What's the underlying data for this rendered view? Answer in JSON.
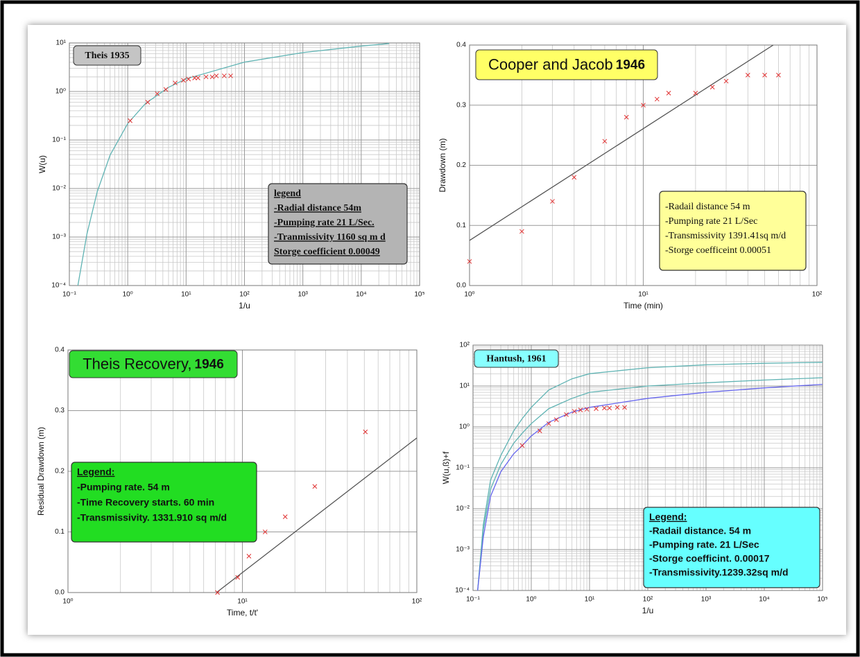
{
  "chart_data": [
    {
      "type": "line",
      "title": "Theis 1935",
      "title_color": "#c4c4c4",
      "xlabel": "1/u",
      "ylabel": "W(u)",
      "xlog": true,
      "ylog": true,
      "grid": true,
      "minor_grid": true,
      "xlim": [
        0.1,
        100000
      ],
      "ylim": [
        0.0001,
        10
      ],
      "xticks": [
        {
          "value": 0.1,
          "label": "10⁻¹"
        },
        {
          "value": 1,
          "label": "10⁰"
        },
        {
          "value": 10,
          "label": "10¹"
        },
        {
          "value": 100,
          "label": "10²"
        },
        {
          "value": 1000,
          "label": "10³"
        },
        {
          "value": 10000,
          "label": "10⁴"
        },
        {
          "value": 100000,
          "label": "10⁵"
        }
      ],
      "yticks": [
        {
          "value": 0.0001,
          "label": "10⁻⁴"
        },
        {
          "value": 0.001,
          "label": "10⁻³"
        },
        {
          "value": 0.01,
          "label": "10⁻²"
        },
        {
          "value": 0.1,
          "label": "10⁻¹"
        },
        {
          "value": 1,
          "label": "10⁰"
        },
        {
          "value": 10,
          "label": "10¹"
        }
      ],
      "series": [
        {
          "color": "#5fb3b3",
          "marker": "line",
          "x": [
            0.14,
            0.2,
            0.3,
            0.5,
            1,
            2,
            5,
            10,
            100,
            1000,
            10000,
            30000
          ],
          "values": [
            0.0001,
            0.00115,
            0.0086,
            0.049,
            0.219,
            0.56,
            1.22,
            1.82,
            4.04,
            6.33,
            8.63,
            9.73
          ]
        },
        {
          "color": "#e03030",
          "marker": "x",
          "x": [
            1.1,
            2.2,
            3.2,
            4.5,
            6.5,
            9,
            11,
            14,
            16,
            22,
            28,
            33,
            45,
            58
          ],
          "values": [
            0.25,
            0.6,
            0.9,
            1.1,
            1.5,
            1.7,
            1.8,
            1.9,
            1.9,
            2.0,
            2.0,
            2.1,
            2.1,
            2.1
          ]
        }
      ],
      "legend": {
        "title": "legend",
        "color": "#b4b4b4",
        "items": [
          "-Radial distance 54m",
          "-Pumping rate 21 L/Sec.",
          "-Tranmissivity 1160 sq m d",
          "Storge coefficient 0.00049"
        ]
      }
    },
    {
      "type": "line",
      "title": "Cooper and Jacob",
      "title_year": "1946",
      "title_color": "#ffff66",
      "xlabel": "Time (min)",
      "ylabel": "Drawdown (m)",
      "xlog": true,
      "ylog": false,
      "grid": true,
      "minor_grid": true,
      "xlim": [
        1,
        100
      ],
      "ylim": [
        0,
        0.4
      ],
      "xticks": [
        {
          "value": 1,
          "label": "10⁰"
        },
        {
          "value": 10,
          "label": "10¹"
        },
        {
          "value": 100,
          "label": "10²"
        }
      ],
      "yticks": [
        {
          "value": 0,
          "label": "0.0"
        },
        0.1,
        0.2,
        0.3,
        0.4
      ],
      "series": [
        {
          "color": "#555555",
          "marker": "line",
          "x": [
            1,
            56
          ],
          "values": [
            0.075,
            0.4
          ]
        },
        {
          "color": "#e03030",
          "marker": "x",
          "x": [
            1,
            2,
            3,
            4,
            6,
            8,
            10,
            12,
            14,
            20,
            25,
            30,
            40,
            50,
            60
          ],
          "values": [
            0.04,
            0.09,
            0.14,
            0.18,
            0.24,
            0.28,
            0.3,
            0.31,
            0.32,
            0.32,
            0.33,
            0.34,
            0.35,
            0.35,
            0.35
          ]
        }
      ],
      "legend": {
        "color": "#ffff99",
        "items": [
          "-Radail distance 54 m",
          "-Pumping rate 21 L/Sec",
          "-Transmissivity 1391.41sq m/d",
          "-Storge coefficeint 0.00051"
        ]
      }
    },
    {
      "type": "line",
      "title": "Theis Recovery,",
      "title_year": "1946",
      "title_color": "#33dd33",
      "xlabel": "Time, t/t'",
      "ylabel": "Residual Drawdown (m)",
      "xlog": true,
      "ylog": false,
      "grid": true,
      "minor_grid": true,
      "xlim": [
        1,
        100
      ],
      "ylim": [
        0,
        0.4
      ],
      "xticks": [
        {
          "value": 1,
          "label": "10⁰"
        },
        {
          "value": 10,
          "label": "10¹"
        },
        {
          "value": 100,
          "label": "10²"
        }
      ],
      "yticks": [
        {
          "value": 0,
          "label": "0.0"
        },
        0.1,
        0.2,
        0.3,
        0.4
      ],
      "series": [
        {
          "color": "#555555",
          "marker": "line",
          "x": [
            7.1,
            100
          ],
          "values": [
            0,
            0.255
          ]
        },
        {
          "color": "#e03030",
          "marker": "x",
          "x": [
            7.2,
            9.4,
            10.9,
            13.5,
            17.6,
            26,
            50.7
          ],
          "values": [
            0,
            0.025,
            0.06,
            0.1,
            0.125,
            0.175,
            0.265
          ]
        }
      ],
      "legend": {
        "title": "Legend:",
        "color": "#22dd22",
        "items": [
          "-Pumping rate. 54 m",
          "-Time Recovery starts. 60 min",
          "-Transmissivity. 1331.910 sq m/d"
        ]
      }
    },
    {
      "type": "line",
      "title": "Hantush, 1961",
      "title_color": "#88ffff",
      "xlabel": "1/u",
      "ylabel": "W(u,ß)+f",
      "xlog": true,
      "ylog": true,
      "grid": true,
      "minor_grid": true,
      "xlim": [
        0.1,
        100000
      ],
      "ylim": [
        0.0001,
        100
      ],
      "xticks": [
        {
          "value": 0.1,
          "label": "10⁻¹"
        },
        {
          "value": 1,
          "label": "10⁰"
        },
        {
          "value": 10,
          "label": "10¹"
        },
        {
          "value": 100,
          "label": "10²"
        },
        {
          "value": 1000,
          "label": "10³"
        },
        {
          "value": 10000,
          "label": "10⁴"
        },
        {
          "value": 100000,
          "label": "10⁵"
        }
      ],
      "yticks": [
        {
          "value": 0.0001,
          "label": "10⁻⁴"
        },
        {
          "value": 0.001,
          "label": "10⁻³"
        },
        {
          "value": 0.01,
          "label": "10⁻²"
        },
        {
          "value": 0.1,
          "label": "10⁻¹"
        },
        {
          "value": 1,
          "label": "10⁰"
        },
        {
          "value": 10,
          "label": "10¹"
        },
        {
          "value": 100,
          "label": "10²"
        }
      ],
      "series": [
        {
          "color": "#5fb3b3",
          "marker": "line",
          "x": [
            0.12,
            0.15,
            0.2,
            0.3,
            0.5,
            0.7,
            1,
            2,
            5,
            10,
            100,
            1000,
            10000,
            100000
          ],
          "values": [
            0.0001,
            0.004,
            0.05,
            0.2,
            0.8,
            1.6,
            3,
            8,
            15,
            20,
            28,
            33,
            36,
            38
          ]
        },
        {
          "color": "#5fb3b3",
          "marker": "line",
          "x": [
            0.12,
            0.15,
            0.2,
            0.3,
            0.5,
            0.7,
            1,
            2,
            5,
            10,
            100,
            1000,
            10000,
            100000
          ],
          "values": [
            0.0001,
            0.003,
            0.03,
            0.12,
            0.4,
            0.7,
            1.2,
            2.8,
            5,
            7,
            10,
            12,
            14,
            16
          ]
        },
        {
          "color": "#6666ee",
          "marker": "line",
          "x": [
            0.12,
            0.15,
            0.2,
            0.3,
            0.5,
            0.7,
            1,
            2,
            5,
            10,
            100,
            1000,
            10000,
            100000
          ],
          "values": [
            0.0001,
            0.002,
            0.02,
            0.08,
            0.22,
            0.35,
            0.6,
            1.3,
            2.3,
            3,
            5,
            7,
            9,
            11
          ]
        },
        {
          "color": "#e03030",
          "marker": "x",
          "x": [
            0.7,
            1.4,
            2,
            2.7,
            4,
            5.5,
            7,
            9,
            13,
            18,
            22,
            30,
            40
          ],
          "values": [
            0.35,
            0.8,
            1.2,
            1.5,
            2,
            2.4,
            2.6,
            2.7,
            2.8,
            2.9,
            2.9,
            3,
            3
          ]
        }
      ],
      "legend": {
        "title": "Legend:",
        "color": "#66ffff",
        "items": [
          "-Radail distance. 54 m",
          "-Pumping rate. 21 L/Sec",
          "-Storge coefficint. 0.00017",
          "-Transmissivity.1239.32sq m/d"
        ]
      }
    }
  ]
}
